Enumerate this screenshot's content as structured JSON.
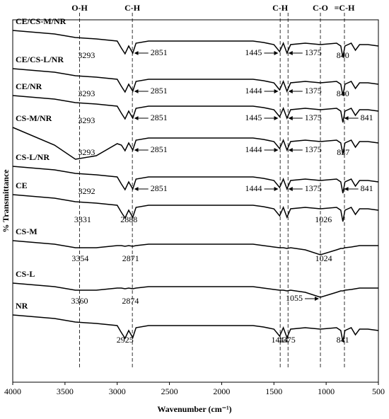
{
  "chart_data": {
    "type": "line",
    "xlabel": "Wavenumber (cm⁻¹)",
    "ylabel": "% Transmittance",
    "xlim": [
      4000,
      500
    ],
    "xticks": [
      4000,
      3500,
      3000,
      2500,
      2000,
      1500,
      1000,
      500
    ],
    "ylim": [
      0,
      512
    ],
    "color": "#000000",
    "x": [
      4000,
      3600,
      3400,
      3200,
      3000,
      2960,
      2925,
      2890,
      2851,
      2820,
      2700,
      2000,
      1700,
      1600,
      1500,
      1445,
      1410,
      1375,
      1340,
      1200,
      1055,
      900,
      860,
      840,
      820,
      760,
      720,
      680,
      600,
      500
    ],
    "guides": [
      {
        "x": 3360,
        "label": "O-H"
      },
      {
        "x": 2855,
        "label": "C-H"
      },
      {
        "x": 1440,
        "label": "C-H"
      },
      {
        "x": 1365
      },
      {
        "x": 1055,
        "label": "C-O"
      },
      {
        "x": 825,
        "label": "=C-H"
      }
    ],
    "series": [
      {
        "name": "CE/CS-M/NR",
        "values": [
          497,
          492,
          487,
          485,
          482,
          472,
          464,
          475,
          465,
          479,
          482,
          482,
          482,
          480,
          477,
          467,
          479,
          465,
          477,
          479,
          477,
          479,
          475,
          459,
          475,
          479,
          469,
          477,
          477,
          475
        ],
        "peaks": [
          {
            "x": 3293
          },
          {
            "x": 2851,
            "arrow": "left"
          },
          {
            "x": 1445,
            "arrow": "right"
          },
          {
            "x": 1375,
            "arrow": "left"
          },
          {
            "x": 840
          }
        ]
      },
      {
        "name": "CE/CS-L/NR",
        "values": [
          443,
          438,
          433,
          431,
          428,
          418,
          410,
          421,
          411,
          425,
          428,
          428,
          428,
          426,
          423,
          413,
          425,
          411,
          423,
          425,
          423,
          425,
          421,
          405,
          421,
          425,
          415,
          423,
          423,
          421
        ],
        "peaks": [
          {
            "x": 3293
          },
          {
            "x": 2851,
            "arrow": "left"
          },
          {
            "x": 1444,
            "arrow": "right"
          },
          {
            "x": 1375,
            "arrow": "left"
          },
          {
            "x": 840
          }
        ]
      },
      {
        "name": "CE/NR",
        "values": [
          405,
          400,
          395,
          393,
          390,
          380,
          372,
          383,
          373,
          387,
          390,
          390,
          390,
          388,
          385,
          375,
          387,
          373,
          385,
          387,
          385,
          387,
          383,
          367,
          383,
          387,
          377,
          385,
          385,
          383
        ],
        "peaks": [
          {
            "x": 3293
          },
          {
            "x": 2851,
            "arrow": "left"
          },
          {
            "x": 1445,
            "arrow": "right"
          },
          {
            "x": 1375,
            "arrow": "left"
          },
          {
            "x": 841,
            "arrow": "left"
          }
        ]
      },
      {
        "name": "CS-M/NR",
        "values": [
          360,
          335,
          315,
          320,
          337,
          335,
          327,
          338,
          328,
          342,
          345,
          345,
          345,
          343,
          340,
          330,
          342,
          328,
          340,
          342,
          340,
          342,
          338,
          322,
          338,
          342,
          332,
          340,
          340,
          338
        ],
        "peaks": [
          {
            "x": 3293
          },
          {
            "x": 2851,
            "arrow": "left"
          },
          {
            "x": 1444,
            "arrow": "right"
          },
          {
            "x": 1375,
            "arrow": "left"
          },
          {
            "x": 837
          }
        ]
      },
      {
        "name": "CS-L/NR",
        "values": [
          305,
          300,
          295,
          293,
          290,
          280,
          272,
          283,
          273,
          287,
          290,
          290,
          290,
          288,
          285,
          275,
          287,
          273,
          285,
          287,
          285,
          287,
          283,
          267,
          283,
          287,
          277,
          285,
          285,
          283
        ],
        "peaks": [
          {
            "x": 3292
          },
          {
            "x": 2851,
            "arrow": "left"
          },
          {
            "x": 1444,
            "arrow": "right"
          },
          {
            "x": 1375,
            "arrow": "left"
          },
          {
            "x": 841,
            "arrow": "left"
          }
        ]
      },
      {
        "name": "CE",
        "values": [
          265,
          260,
          255,
          253,
          250,
          240,
          232,
          243,
          233,
          247,
          250,
          250,
          250,
          248,
          245,
          235,
          247,
          233,
          245,
          247,
          245,
          247,
          243,
          227,
          243,
          247,
          237,
          245,
          245,
          243
        ],
        "peaks": [
          {
            "x": 3331
          },
          {
            "x": 2888
          },
          {
            "x": 1026
          }
        ]
      },
      {
        "name": "CS-M",
        "values": [
          200,
          195,
          190,
          190,
          193,
          193,
          192,
          193,
          192,
          193,
          195,
          195,
          195,
          193,
          191,
          190,
          190,
          189,
          190,
          187,
          180,
          187,
          189,
          189,
          190,
          191,
          192,
          193,
          193,
          193
        ],
        "peaks": [
          {
            "x": 3354
          },
          {
            "x": 2871
          },
          {
            "x": 1024
          }
        ]
      },
      {
        "name": "CS-L",
        "values": [
          140,
          135,
          130,
          130,
          133,
          133,
          132,
          133,
          132,
          133,
          135,
          135,
          135,
          133,
          131,
          130,
          130,
          129,
          130,
          127,
          120,
          127,
          129,
          129,
          130,
          131,
          132,
          133,
          133,
          133
        ],
        "peaks": [
          {
            "x": 3360
          },
          {
            "x": 2874
          },
          {
            "x": 1055,
            "arrow": "right"
          }
        ]
      },
      {
        "name": "NR",
        "values": [
          95,
          90,
          85,
          83,
          80,
          70,
          62,
          73,
          63,
          77,
          80,
          80,
          80,
          78,
          75,
          65,
          77,
          63,
          75,
          77,
          75,
          77,
          73,
          57,
          73,
          77,
          67,
          75,
          75,
          73
        ],
        "peaks": [
          {
            "x": 2925
          },
          {
            "x": 1444
          },
          {
            "x": 1375
          },
          {
            "x": 841
          }
        ]
      }
    ]
  }
}
